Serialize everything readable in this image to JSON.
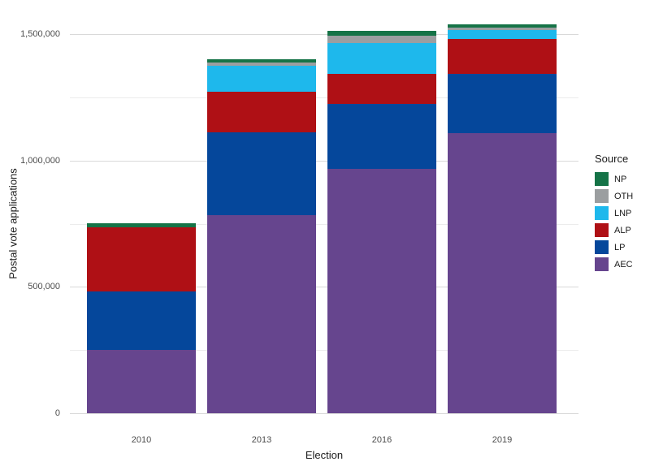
{
  "chart_data": {
    "type": "bar",
    "stacked": true,
    "title": "",
    "xlabel": "Election",
    "ylabel": "Postal vote applications",
    "categories": [
      "2010",
      "2013",
      "2016",
      "2019"
    ],
    "series": [
      {
        "name": "AEC",
        "color": "#66458E",
        "values": [
          250000,
          784000,
          967000,
          1109000
        ]
      },
      {
        "name": "LP",
        "color": "#05479B",
        "values": [
          232000,
          327000,
          257000,
          236000
        ]
      },
      {
        "name": "ALP",
        "color": "#AF1015",
        "values": [
          254000,
          163000,
          120000,
          136000
        ]
      },
      {
        "name": "LNP",
        "color": "#1EB8EC",
        "values": [
          0,
          103000,
          123000,
          37000
        ]
      },
      {
        "name": "OTH",
        "color": "#9B9EA0",
        "values": [
          0,
          11000,
          28000,
          9000
        ]
      },
      {
        "name": "NP",
        "color": "#157347",
        "values": [
          16000,
          14000,
          18000,
          14000
        ]
      }
    ],
    "totals": [
      752000,
      1402000,
      1513000,
      1541000
    ],
    "legend": {
      "title": "Source",
      "position": "right",
      "entries": [
        "NP",
        "OTH",
        "LNP",
        "ALP",
        "LP",
        "AEC"
      ]
    },
    "y_ticks": [
      {
        "value": 0,
        "label": "0"
      },
      {
        "value": 500000,
        "label": "500,000"
      },
      {
        "value": 1000000,
        "label": "1,000,000"
      },
      {
        "value": 1500000,
        "label": "1,500,000"
      }
    ],
    "y_minor_ticks": [
      250000,
      750000,
      1250000
    ],
    "ylim": [
      0,
      1617000
    ],
    "grid": true,
    "colors": {
      "grid_major": "#d9d9d9",
      "grid_minor": "#ececec",
      "tick_text": "#4d4d4d",
      "axis_title_text": "#1a1a1a",
      "background": "#ffffff"
    }
  }
}
